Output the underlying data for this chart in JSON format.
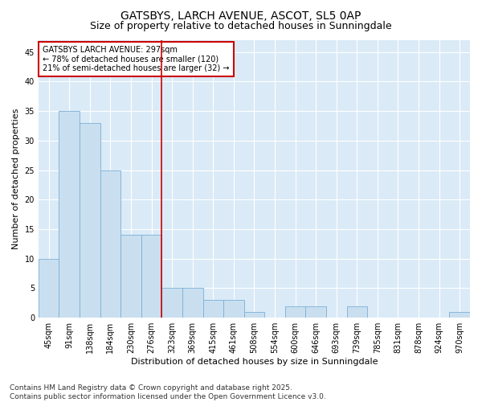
{
  "title1": "GATSBYS, LARCH AVENUE, ASCOT, SL5 0AP",
  "title2": "Size of property relative to detached houses in Sunningdale",
  "xlabel": "Distribution of detached houses by size in Sunningdale",
  "ylabel": "Number of detached properties",
  "categories": [
    "45sqm",
    "91sqm",
    "138sqm",
    "184sqm",
    "230sqm",
    "276sqm",
    "323sqm",
    "369sqm",
    "415sqm",
    "461sqm",
    "508sqm",
    "554sqm",
    "600sqm",
    "646sqm",
    "693sqm",
    "739sqm",
    "785sqm",
    "831sqm",
    "878sqm",
    "924sqm",
    "970sqm"
  ],
  "values": [
    10,
    35,
    33,
    25,
    14,
    14,
    5,
    5,
    3,
    3,
    1,
    0,
    2,
    2,
    0,
    2,
    0,
    0,
    0,
    0,
    1
  ],
  "bar_color": "#c9dff0",
  "bar_edge_color": "#7bafd4",
  "vline_x": 5.5,
  "vline_color": "#cc0000",
  "annotation_text": "GATSBYS LARCH AVENUE: 297sqm\n← 78% of detached houses are smaller (120)\n21% of semi-detached houses are larger (32) →",
  "annotation_box_color": "#ffffff",
  "annotation_box_edge": "#cc0000",
  "ylim": [
    0,
    47
  ],
  "yticks": [
    0,
    5,
    10,
    15,
    20,
    25,
    30,
    35,
    40,
    45
  ],
  "background_color": "#daeaf7",
  "footer": "Contains HM Land Registry data © Crown copyright and database right 2025.\nContains public sector information licensed under the Open Government Licence v3.0.",
  "title_fontsize": 10,
  "subtitle_fontsize": 9,
  "axis_label_fontsize": 8,
  "tick_fontsize": 7,
  "annotation_fontsize": 7,
  "footer_fontsize": 6.5
}
